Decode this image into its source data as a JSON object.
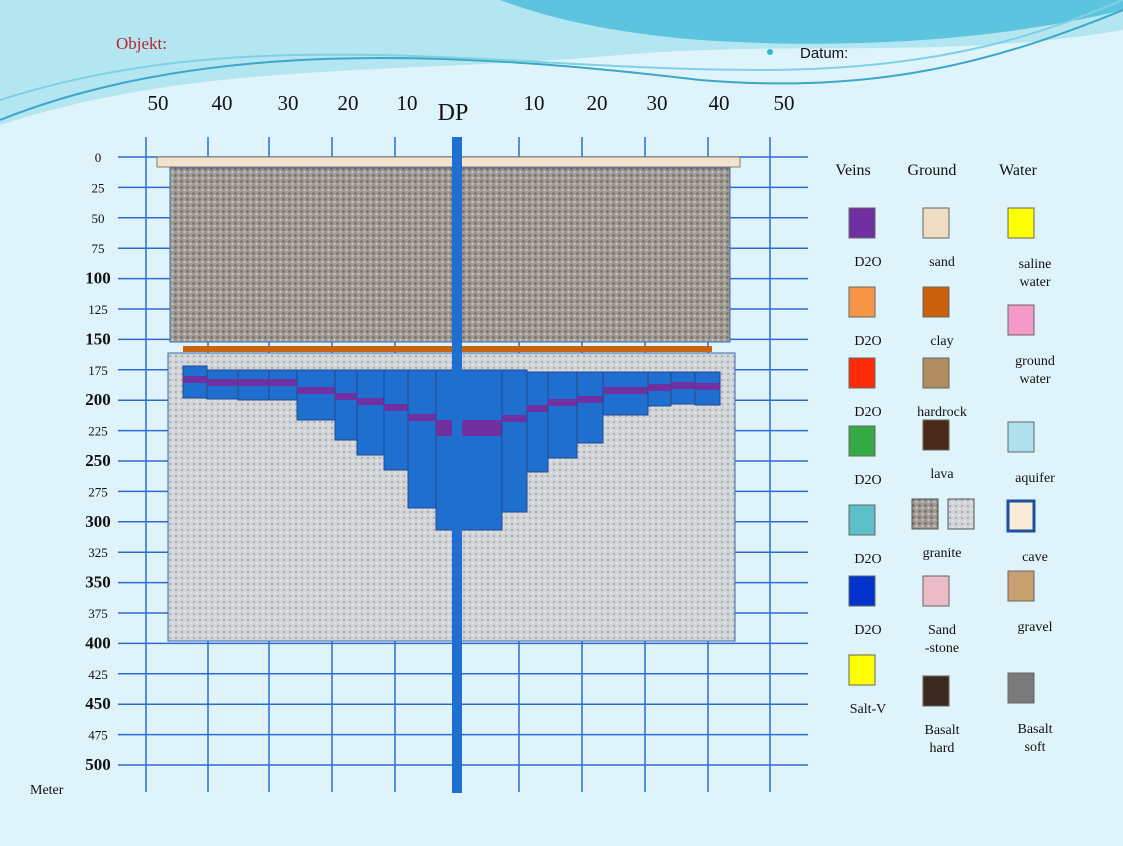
{
  "header": {
    "object_label": "Objekt:",
    "date_label": "Datum:"
  },
  "distance_labels": [
    "50",
    "40",
    "30",
    "20",
    "10",
    "DP",
    "10",
    "20",
    "30",
    "40",
    "50"
  ],
  "depth_labels": [
    0,
    25,
    50,
    75,
    100,
    125,
    150,
    175,
    200,
    225,
    250,
    275,
    300,
    325,
    350,
    375,
    400,
    425,
    450,
    475,
    500
  ],
  "unit_label": "Meter",
  "legend": {
    "headers": [
      "Veins",
      "Ground",
      "Water"
    ],
    "veins": [
      {
        "label": [
          "D2O"
        ],
        "color": "#7030a0"
      },
      {
        "label": [
          "D2O"
        ],
        "color": "#f79646"
      },
      {
        "label": [
          "D2O"
        ],
        "color": "#ff2a0a"
      },
      {
        "label": [
          "D2O"
        ],
        "color": "#33aa44"
      },
      {
        "label": [
          "D2O"
        ],
        "color": "#5bc0c8"
      },
      {
        "label": [
          "D2O"
        ],
        "color": "#0033cc"
      },
      {
        "label": [
          "Salt-V"
        ],
        "color": "#ffff00"
      }
    ],
    "ground": [
      {
        "label": [
          "sand"
        ],
        "color": "#eedcc4"
      },
      {
        "label": [
          "clay"
        ],
        "color": "#c8600e"
      },
      {
        "label": [
          "hardrock"
        ],
        "color": "#b08c60"
      },
      {
        "label": [
          "lava"
        ],
        "color": "#4a2a18"
      },
      {
        "label": [
          "granite"
        ],
        "color": "#9c8a80"
      },
      {
        "label": [
          "Sand",
          "-stone"
        ],
        "color": "#ebbcc8"
      },
      {
        "label": [
          "Basalt",
          "hard"
        ],
        "color": "#3c2a20"
      }
    ],
    "water": [
      {
        "label": [
          "saline",
          "water"
        ],
        "color": "#ffff00"
      },
      {
        "label": [
          "ground",
          "water"
        ],
        "color": "#f59ac8"
      },
      {
        "label": [
          "aquifer"
        ],
        "color": "#aee0ee"
      },
      {
        "label": [
          "cave"
        ],
        "color": "#f8ecd8"
      },
      {
        "label": [
          "gravel"
        ],
        "color": "#c8a070"
      },
      {
        "label": [
          "Basalt",
          "soft"
        ],
        "color": "#7a7a7a"
      }
    ]
  }
}
